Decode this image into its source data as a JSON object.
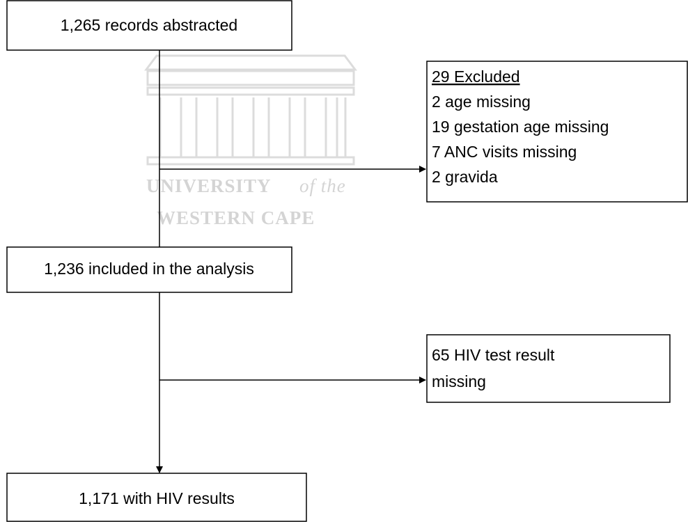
{
  "watermark": {
    "lines": [
      "UNIVERSITY",
      "of the",
      "WESTERN CAPE"
    ]
  },
  "nodes": [
    {
      "lines": [
        "1,265 records abstracted"
      ]
    },
    {
      "heading": "29 Excluded",
      "lines": [
        "2 age missing",
        "19 gestation age missing",
        "7 ANC visits missing",
        "2 gravida"
      ]
    },
    {
      "lines": [
        "1,236 included in the analysis"
      ]
    },
    {
      "lines": [
        "65 HIV test result",
        "missing"
      ]
    },
    {
      "lines": [
        "1,171 with HIV results"
      ]
    }
  ]
}
